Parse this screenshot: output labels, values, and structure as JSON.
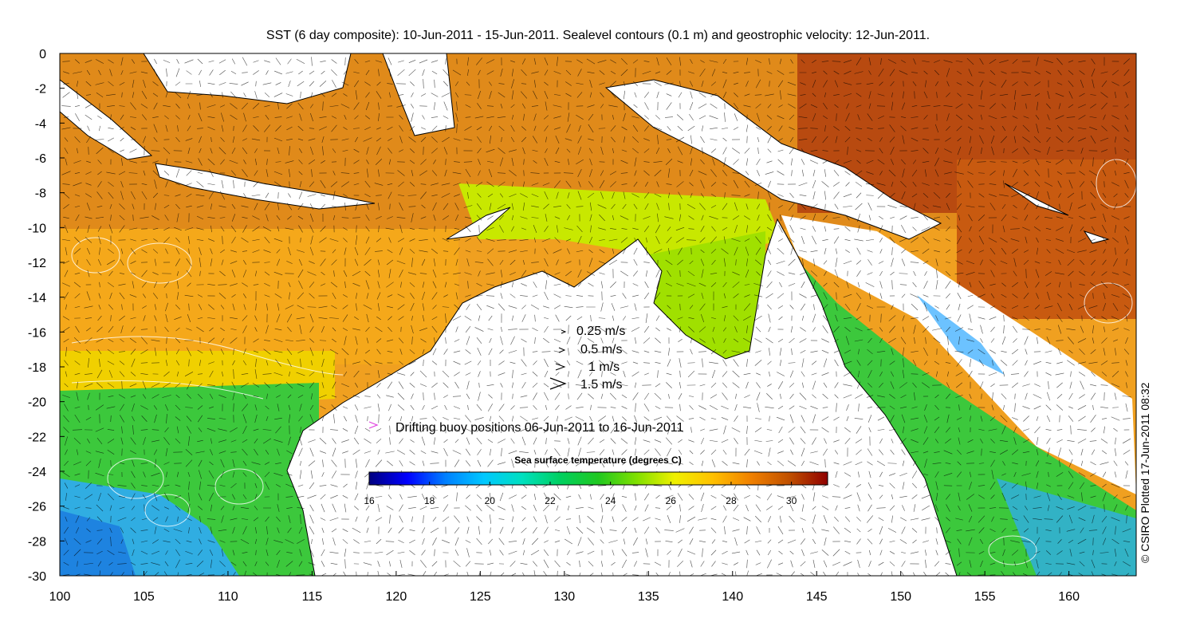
{
  "title": "SST (6 day composite): 10-Jun-2011 - 15-Jun-2011. Sealevel contours (0.1 m) and geostrophic velocity: 12-Jun-2011.",
  "axes": {
    "x_ticks": [
      "100",
      "105",
      "110",
      "115",
      "120",
      "125",
      "130",
      "135",
      "140",
      "145",
      "150",
      "155",
      "160"
    ],
    "y_ticks": [
      "0",
      "-2",
      "-4",
      "-6",
      "-8",
      "-10",
      "-12",
      "-14",
      "-16",
      "-18",
      "-20",
      "-22",
      "-24",
      "-26",
      "-28",
      "-30"
    ],
    "lon_range": [
      100,
      164
    ],
    "lat_range": [
      -30,
      0
    ]
  },
  "velocity_legend": [
    {
      "label": "0.25 m/s",
      "speed": 0.25
    },
    {
      "label": "0.5 m/s",
      "speed": 0.5
    },
    {
      "label": "1 m/s",
      "speed": 1
    },
    {
      "label": "1.5 m/s",
      "speed": 1.5
    }
  ],
  "buoy_legend": {
    "label": "Drifting buoy positions 06-Jun-2011 to 16-Jun-2011",
    "color": "#e040e0"
  },
  "colorbar": {
    "title": "Sea surface temperature (degrees C)",
    "ticks": [
      "16",
      "18",
      "20",
      "22",
      "24",
      "26",
      "28",
      "30"
    ],
    "range": [
      16,
      31.2
    ],
    "colors": [
      "#00007f",
      "#0000ff",
      "#0080ff",
      "#00c8ff",
      "#00e0c0",
      "#00d060",
      "#20c820",
      "#80e000",
      "#f0f000",
      "#ffc000",
      "#f08000",
      "#c05000",
      "#900000"
    ]
  },
  "credit": "© CSIRO Plotted 17-Jun-2011 08:32",
  "map_colors": {
    "land": "#ffffff",
    "warm_north": "#e08a1a",
    "hot_northeast": "#b84a10",
    "tropical_seas": "#f5a81a",
    "coral_sea": "#f5b820",
    "shelf_green": "#9ee000",
    "cool_southwest": "#3cc83c",
    "cold_south": "#2ea8ff",
    "contours": "#ffffff",
    "arrows": "#000000"
  }
}
